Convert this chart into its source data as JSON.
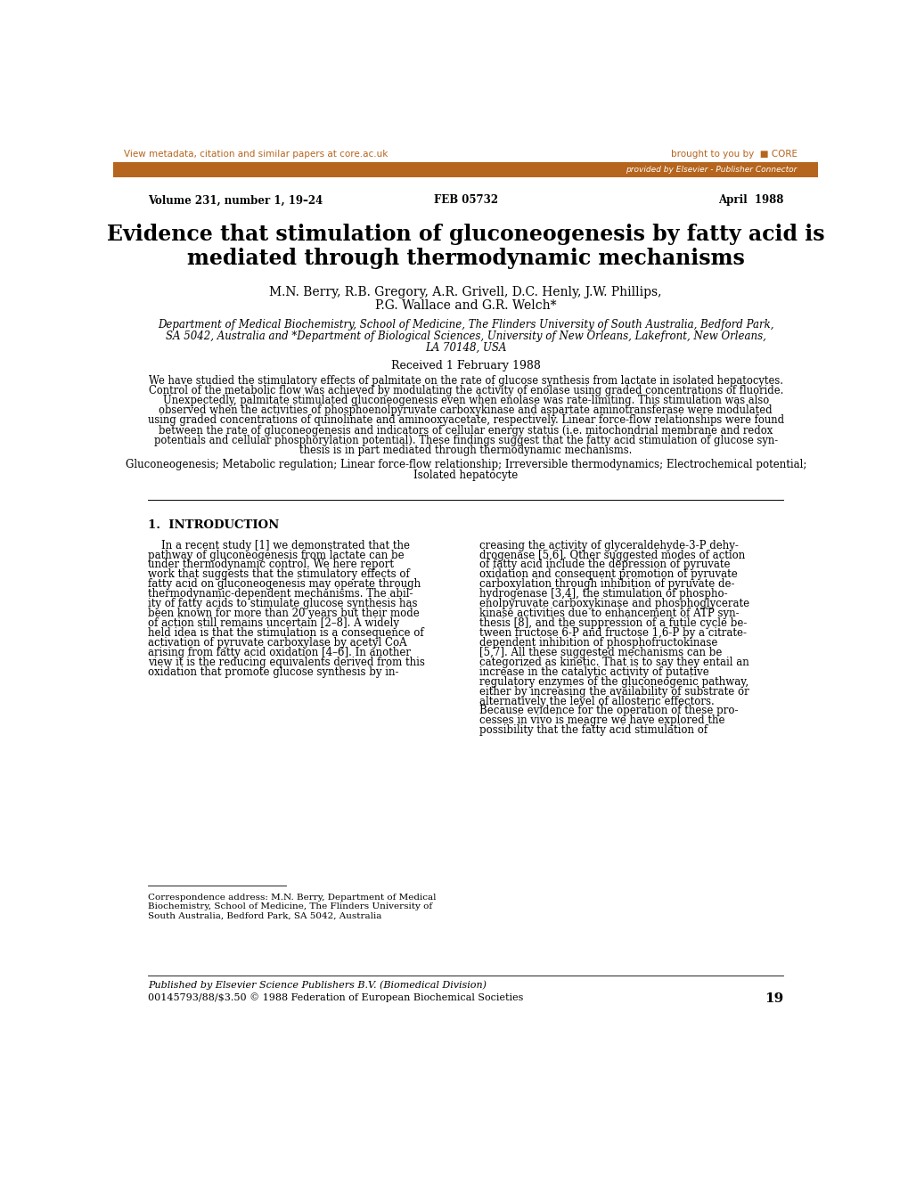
{
  "header_bar_color": "#b5651d",
  "elsevier_text": "provided by Elsevier - Publisher Connector",
  "core_link_text": "View metadata, citation and similar papers at core.ac.uk",
  "core_logo_text": "brought to you by  □ CORE",
  "volume_line": "Volume 231, number 1, 19–24",
  "feb_text": "FEB 05732",
  "date_text": "April  1988",
  "title_line1": "Evidence that stimulation of gluconeogenesis by fatty acid is",
  "title_line2": "mediated through thermodynamic mechanisms",
  "authors_line1": "M.N. Berry, R.B. Gregory, A.R. Grivell, D.C. Henly, J.W. Phillips,",
  "authors_line2": "P.G. Wallace and G.R. Welch*",
  "affiliation1": "Department of Medical Biochemistry, School of Medicine, The Flinders University of South Australia, Bedford Park,",
  "affiliation2": "SA 5042, Australia and *Department of Biological Sciences, University of New Orleans, Lakefront, New Orleans,",
  "affiliation3": "LA 70148, USA",
  "received_text": "Received 1 February 1988",
  "abstract_line1": "We have studied the stimulatory effects of palmitate on the rate of glucose synthesis from lactate in isolated hepatocytes.",
  "abstract_line2": "Control of the metabolic flow was achieved by modulating the activity of enolase using graded concentrations of fluoride.",
  "abstract_line3": "Unexpectedly, palmitate stimulated gluconeogenesis even when enolase was rate-limiting. This stimulation was also",
  "abstract_line4": "observed when the activities of phosphoenolpyruvate carboxykinase and aspartate aminotransferase were modulated",
  "abstract_line5": "using graded concentrations of quinolinate and aminooxyacetate, respectively. Linear force-flow relationships were found",
  "abstract_line6": "between the rate of gluconeogenesis and indicators of cellular energy status (i.e. mitochondrial membrane and redox",
  "abstract_line7": "potentials and cellular phosphorylation potential). These findings suggest that the fatty acid stimulation of glucose syn-",
  "abstract_line8": "thesis is in part mediated through thermodynamic mechanisms.",
  "keywords_line1": "Gluconeogenesis; Metabolic regulation; Linear force-flow relationship; Irreversible thermodynamics; Electrochemical potential;",
  "keywords_line2": "Isolated hepatocyte",
  "section1_title": "1.  INTRODUCTION",
  "col1_lines": [
    "    In a recent study [1] we demonstrated that the",
    "pathway of gluconeogenesis from lactate can be",
    "under thermodynamic control. We here report",
    "work that suggests that the stimulatory effects of",
    "fatty acid on gluconeogenesis may operate through",
    "thermodynamic-dependent mechanisms. The abil-",
    "ity of fatty acids to stimulate glucose synthesis has",
    "been known for more than 20 years but their mode",
    "of action still remains uncertain [2–8]. A widely",
    "held idea is that the stimulation is a consequence of",
    "activation of pyruvate carboxylase by acetyl CoA",
    "arising from fatty acid oxidation [4–6]. In another",
    "view it is the reducing equivalents derived from this",
    "oxidation that promote glucose synthesis by in-"
  ],
  "col2_lines": [
    "creasing the activity of glyceraldehyde-3-P dehy-",
    "drogenase [5,6]. Other suggested modes of action",
    "of fatty acid include the depression of pyruvate",
    "oxidation and consequent promotion of pyruvate",
    "carboxylation through inhibition of pyruvate de-",
    "hydrogenase [3,4], the stimulation of phospho-",
    "enolpyruvate carboxykinase and phosphoglycerate",
    "kinase activities due to enhancement of ATP syn-",
    "thesis [8], and the suppression of a futile cycle be-",
    "tween fructose 6-P and fructose 1,6-P by a citrate-",
    "dependent inhibition of phosphofructokinase",
    "[5,7]. All these suggested mechanisms can be",
    "categorized as kinetic. That is to say they entail an",
    "increase in the catalytic activity of putative",
    "regulatory enzymes of the gluconeogenic pathway,",
    "either by increasing the availability of substrate or",
    "alternatively the level of allosteric effectors.",
    "Because evidence for the operation of these pro-",
    "cesses in vivo is meagre we have explored the",
    "possibility that the fatty acid stimulation of"
  ],
  "corr_lines": [
    "Correspondence address: M.N. Berry, Department of Medical",
    "Biochemistry, School of Medicine, The Flinders University of",
    "South Australia, Bedford Park, SA 5042, Australia"
  ],
  "published_line1": "Published by Elsevier Science Publishers B.V. (Biomedical Division)",
  "published_line2": "00145793/88/$3.50 © 1988 Federation of European Biochemical Societies",
  "page_number": "19",
  "bg_color": "#ffffff",
  "text_color": "#000000"
}
